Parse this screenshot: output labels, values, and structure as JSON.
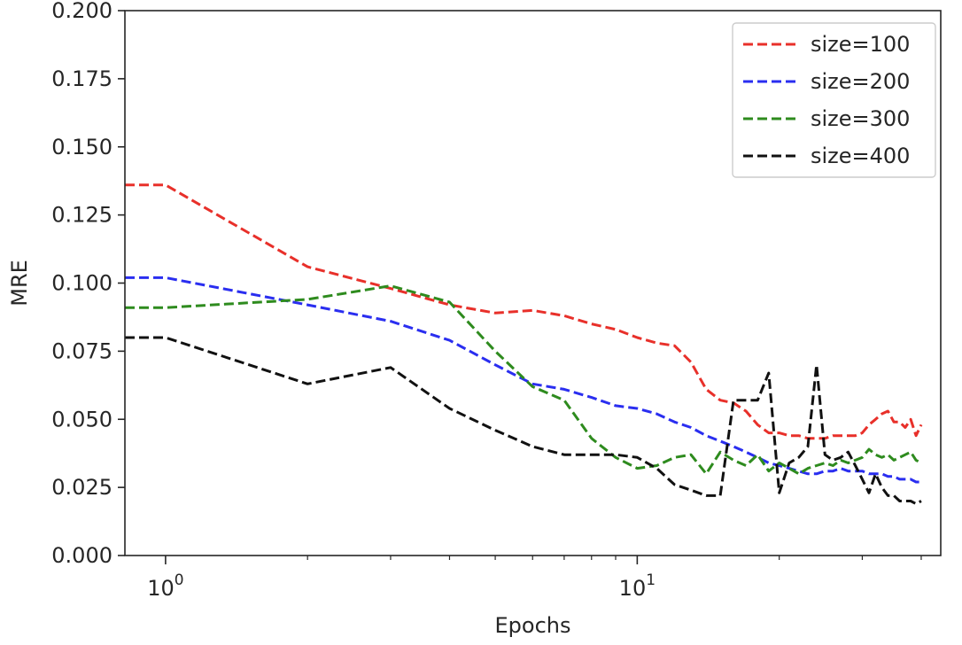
{
  "chart_data": {
    "type": "line",
    "title": "",
    "xlabel": "Epochs",
    "ylabel": "MRE",
    "xscale": "log",
    "xlim": [
      0.82,
      44
    ],
    "ylim": [
      0.0,
      0.2
    ],
    "y_ticks": [
      "0.000",
      "0.025",
      "0.050",
      "0.075",
      "0.100",
      "0.125",
      "0.150",
      "0.175",
      "0.200"
    ],
    "x_ticks": [
      {
        "value": 1,
        "base": "10",
        "exp": "0"
      },
      {
        "value": 10,
        "base": "10",
        "exp": "1"
      }
    ],
    "grid": false,
    "legend_position": "upper right",
    "series": [
      {
        "name": "size=100",
        "color": "#e8302a",
        "x": [
          0.8,
          1,
          2,
          3,
          4,
          5,
          6,
          7,
          8,
          9,
          10,
          11,
          12,
          13,
          14,
          15,
          16,
          17,
          18,
          19,
          20,
          21,
          22,
          23,
          24,
          25,
          26,
          27,
          28,
          29,
          30,
          31,
          32,
          33,
          34,
          35,
          36,
          37,
          38,
          39,
          40
        ],
        "y": [
          0.136,
          0.136,
          0.106,
          0.098,
          0.092,
          0.089,
          0.09,
          0.088,
          0.085,
          0.083,
          0.08,
          0.078,
          0.077,
          0.071,
          0.061,
          0.057,
          0.056,
          0.053,
          0.048,
          0.045,
          0.045,
          0.044,
          0.044,
          0.043,
          0.043,
          0.043,
          0.044,
          0.044,
          0.044,
          0.044,
          0.045,
          0.048,
          0.05,
          0.052,
          0.053,
          0.049,
          0.049,
          0.047,
          0.05,
          0.044,
          0.048
        ]
      },
      {
        "name": "size=200",
        "color": "#2a2ef0",
        "x": [
          0.8,
          1,
          2,
          3,
          4,
          5,
          6,
          7,
          8,
          9,
          10,
          11,
          12,
          13,
          14,
          15,
          16,
          17,
          18,
          19,
          20,
          21,
          22,
          23,
          24,
          25,
          26,
          27,
          28,
          29,
          30,
          31,
          32,
          33,
          34,
          35,
          36,
          37,
          38,
          39,
          40
        ],
        "y": [
          0.102,
          0.102,
          0.092,
          0.086,
          0.079,
          0.07,
          0.063,
          0.061,
          0.058,
          0.055,
          0.054,
          0.052,
          0.049,
          0.047,
          0.044,
          0.042,
          0.04,
          0.038,
          0.036,
          0.034,
          0.033,
          0.032,
          0.031,
          0.03,
          0.03,
          0.031,
          0.031,
          0.032,
          0.031,
          0.031,
          0.031,
          0.03,
          0.03,
          0.03,
          0.029,
          0.029,
          0.028,
          0.028,
          0.028,
          0.027,
          0.027
        ]
      },
      {
        "name": "size=300",
        "color": "#2e8b1e",
        "x": [
          0.8,
          1,
          2,
          3,
          4,
          5,
          6,
          7,
          8,
          9,
          10,
          11,
          12,
          13,
          14,
          15,
          16,
          17,
          18,
          19,
          20,
          21,
          22,
          23,
          24,
          25,
          26,
          27,
          28,
          29,
          30,
          31,
          32,
          33,
          34,
          35,
          36,
          37,
          38,
          39,
          40
        ],
        "y": [
          0.091,
          0.091,
          0.094,
          0.099,
          0.093,
          0.075,
          0.062,
          0.057,
          0.043,
          0.036,
          0.032,
          0.033,
          0.036,
          0.037,
          0.03,
          0.038,
          0.035,
          0.033,
          0.037,
          0.031,
          0.034,
          0.032,
          0.03,
          0.032,
          0.033,
          0.034,
          0.033,
          0.035,
          0.034,
          0.035,
          0.036,
          0.039,
          0.037,
          0.036,
          0.037,
          0.035,
          0.036,
          0.037,
          0.038,
          0.035,
          0.034
        ]
      },
      {
        "name": "size=400",
        "color": "#111111",
        "x": [
          0.8,
          1,
          2,
          3,
          4,
          5,
          6,
          7,
          8,
          9,
          10,
          11,
          12,
          13,
          14,
          15,
          16,
          17,
          18,
          19,
          20,
          21,
          22,
          23,
          24,
          25,
          26,
          27,
          28,
          29,
          30,
          31,
          32,
          33,
          34,
          35,
          36,
          37,
          38,
          39,
          40
        ],
        "y": [
          0.08,
          0.08,
          0.063,
          0.069,
          0.054,
          0.046,
          0.04,
          0.037,
          0.037,
          0.037,
          0.036,
          0.032,
          0.026,
          0.024,
          0.022,
          0.022,
          0.057,
          0.057,
          0.057,
          0.067,
          0.023,
          0.034,
          0.036,
          0.04,
          0.07,
          0.037,
          0.035,
          0.036,
          0.038,
          0.033,
          0.028,
          0.023,
          0.03,
          0.025,
          0.022,
          0.022,
          0.02,
          0.02,
          0.02,
          0.019,
          0.02
        ]
      }
    ]
  }
}
